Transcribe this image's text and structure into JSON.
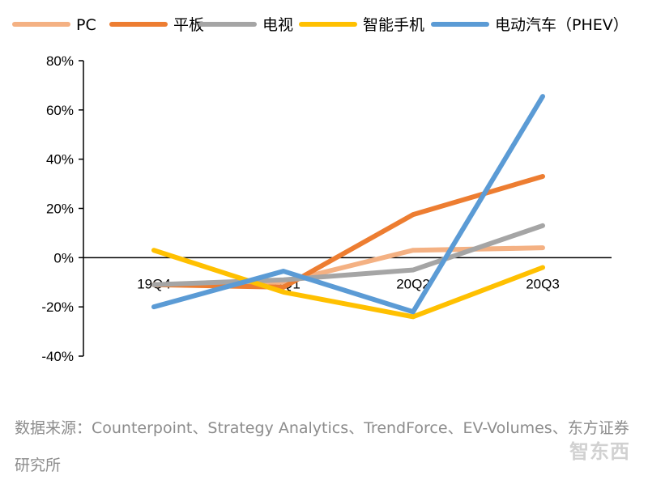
{
  "chart_data": {
    "type": "line",
    "categories": [
      "19Q4",
      "20Q1",
      "20Q2",
      "20Q3"
    ],
    "ylim": [
      -40,
      80
    ],
    "yticks": [
      -40,
      -20,
      0,
      20,
      40,
      60,
      80
    ],
    "ytick_labels": [
      "-40%",
      "-20%",
      "0%",
      "20%",
      "40%",
      "60%",
      "80%"
    ],
    "legend_position": "top",
    "series": [
      {
        "name": "PC",
        "color": "#f4b183",
        "values": [
          -11,
          -10,
          3,
          4
        ]
      },
      {
        "name": "平板",
        "color": "#ed7d31",
        "values": [
          -11,
          -12,
          17.5,
          33
        ]
      },
      {
        "name": "电视",
        "color": "#a5a5a5",
        "values": [
          -11,
          -9,
          -5,
          13
        ]
      },
      {
        "name": "智能手机",
        "color": "#ffc000",
        "values": [
          3,
          -14,
          -24,
          -4
        ]
      },
      {
        "name": "电动汽车（PHEV）",
        "color": "#5b9bd5",
        "values": [
          -20,
          -5.5,
          -22,
          65.5
        ]
      }
    ]
  },
  "source": {
    "text": "数据来源：Counterpoint、Strategy Analytics、TrendForce、EV-Volumes、东方证券研究所"
  },
  "watermark": {
    "text": "智东西"
  }
}
